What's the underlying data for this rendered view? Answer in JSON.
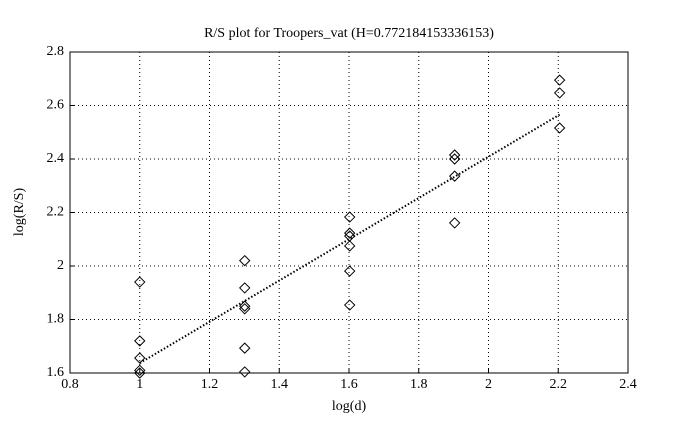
{
  "chart_data": {
    "type": "scatter",
    "title": "R/S plot for Troopers_vat (H=0.772184153336153)",
    "x_label": "log(d)",
    "y_label": "log(R/S)",
    "series": [
      {
        "kind": "scatter",
        "marker": "diamond",
        "color": "#000000",
        "x": [
          1,
          1,
          1,
          1,
          1,
          1.301,
          1.301,
          1.301,
          1.301,
          1.301,
          1.301,
          1.602,
          1.602,
          1.602,
          1.602,
          1.602,
          1.602,
          1.903,
          1.903,
          1.903,
          1.903,
          2.204,
          2.204,
          2.204
        ],
        "values": [
          1.94,
          1.72,
          1.656,
          1.61,
          1.6,
          2.02,
          1.918,
          1.85,
          1.84,
          1.693,
          1.604,
          2.183,
          2.123,
          2.112,
          2.075,
          1.981,
          1.854,
          2.415,
          2.4,
          2.336,
          2.161,
          2.695,
          2.647,
          2.516
        ]
      },
      {
        "kind": "line",
        "style": "dotted",
        "color": "#000000",
        "x": [
          1,
          2.204
        ],
        "values": [
          1.637,
          2.566
        ]
      }
    ],
    "xlim": [
      0.8,
      2.4
    ],
    "xticks": [
      0.8,
      1,
      1.2,
      1.4,
      1.6,
      1.8,
      2,
      2.2,
      2.4
    ],
    "ylim": [
      1.6,
      2.8
    ],
    "yticks": [
      1.6,
      1.8,
      2,
      2.2,
      2.4,
      2.6,
      2.8
    ],
    "grid": true
  }
}
